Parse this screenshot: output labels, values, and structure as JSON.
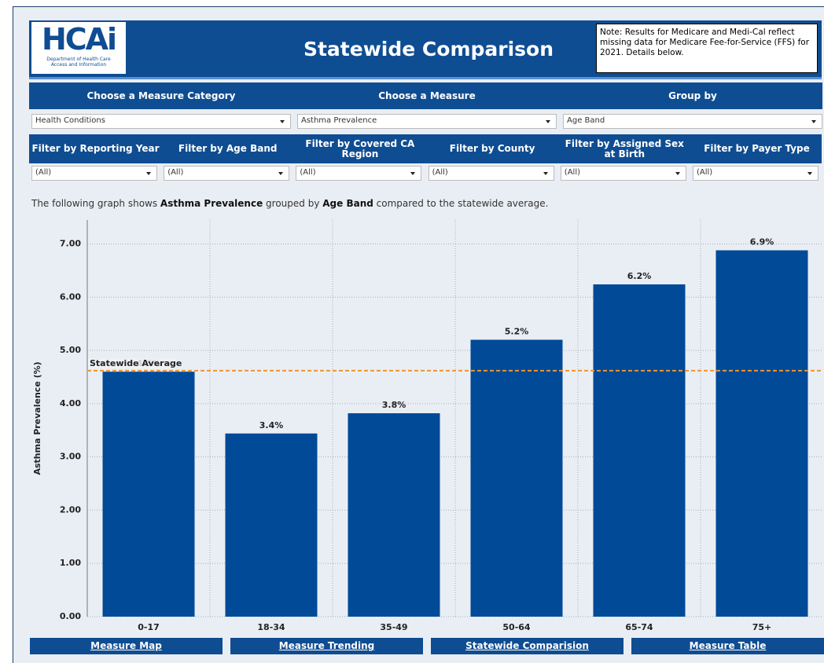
{
  "header": {
    "logo_text": "HCAi",
    "logo_subtext": "Department of Health Care Access and Information",
    "title": "Statewide Comparison",
    "note": "Note: Results for Medicare and Medi-Cal reflect missing data for Medicare Fee-for-Service (FFS) for 2021. Details below."
  },
  "selectors": [
    {
      "label": "Choose a Measure Category",
      "value": "Health Conditions"
    },
    {
      "label": "Choose a Measure",
      "value": "Asthma Prevalence"
    },
    {
      "label": "Group by",
      "value": "Age Band"
    }
  ],
  "filters": [
    {
      "label": "Filter by Reporting Year",
      "value": "(All)"
    },
    {
      "label": "Filter by Age Band",
      "value": "(All)"
    },
    {
      "label": "Filter by Covered CA Region",
      "value": "(All)"
    },
    {
      "label": "Filter by County",
      "value": "(All)"
    },
    {
      "label": "Filter by Assigned Sex at Birth",
      "value": "(All)"
    },
    {
      "label": "Filter by Payer Type",
      "value": "(All)"
    }
  ],
  "description": [
    "The following graph shows ",
    "Asthma Prevalence",
    " grouped by ",
    "Age Band",
    " compared to the statewide average."
  ],
  "chart_data": {
    "type": "bar",
    "y_label": "Asthma Prevalence (%)",
    "categories": [
      "0-17",
      "18-34",
      "35-49",
      "50-64",
      "65-74",
      "75+"
    ],
    "values": [
      4.6,
      3.44,
      3.82,
      5.2,
      6.24,
      6.88
    ],
    "value_labels": [
      "4.6%",
      "3.4%",
      "3.8%",
      "5.2%",
      "6.2%",
      "6.9%"
    ],
    "color": "#004a98",
    "ylim": [
      0,
      7.45
    ],
    "yticks": [
      {
        "value": 0,
        "label": "0.00"
      },
      {
        "value": 1,
        "label": "1.00"
      },
      {
        "value": 2,
        "label": "2.00"
      },
      {
        "value": 3,
        "label": "3.00"
      },
      {
        "value": 4,
        "label": "4.00"
      },
      {
        "value": 5,
        "label": "5.00"
      },
      {
        "value": 6,
        "label": "6.00"
      },
      {
        "value": 7,
        "label": "7.00"
      }
    ],
    "grid": true,
    "reference_line": {
      "label": "Statewide Average",
      "value": 4.62,
      "color": "#f0942c"
    }
  },
  "nav": [
    "Measure Map",
    "Measure Trending",
    "Statewide Comparision",
    "Measure Table"
  ]
}
